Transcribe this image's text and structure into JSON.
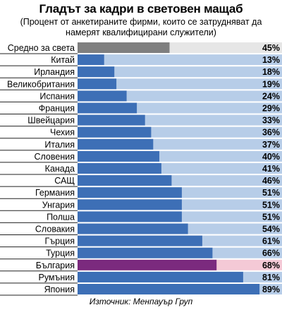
{
  "title": "Гладът за кадри в световен мащаб",
  "subtitle": "(Процент от анкетираните фирми, които се затрудняват да намерят квалифицирани служители)",
  "source": "Източник: Менпауър Груп",
  "colors": {
    "average_bar": "#7f7f7f",
    "average_bg": "#e6e6e6",
    "default_bar": "#3d6fb6",
    "default_bg": "#b7cde8",
    "highlight_bar": "#7b2a7e",
    "highlight_bg": "#f4c9d6"
  },
  "chart_data": {
    "type": "bar",
    "orientation": "horizontal",
    "unit": "%",
    "xlim": [
      0,
      100
    ],
    "categories": [
      "Средно за света",
      "Китай",
      "Ирландия",
      "Великобритания",
      "Испания",
      "Франция",
      "Швейцария",
      "Чехия",
      "Италия",
      "Словения",
      "Канада",
      "САЩ",
      "Германия",
      "Унгария",
      "Полша",
      "Словакия",
      "Гърция",
      "Турция",
      "България",
      "Румъния",
      "Япония"
    ],
    "values": [
      45,
      13,
      18,
      19,
      24,
      29,
      33,
      36,
      37,
      40,
      41,
      46,
      51,
      51,
      51,
      54,
      61,
      66,
      68,
      81,
      89
    ],
    "value_labels": [
      "45%",
      "13%",
      "18%",
      "19%",
      "24%",
      "29%",
      "33%",
      "36%",
      "37%",
      "40%",
      "41%",
      "46%",
      "51%",
      "51%",
      "51%",
      "54%",
      "61%",
      "66%",
      "68%",
      "81%",
      "89%"
    ],
    "highlight": {
      "average": "Средно за света",
      "country": "България"
    }
  }
}
